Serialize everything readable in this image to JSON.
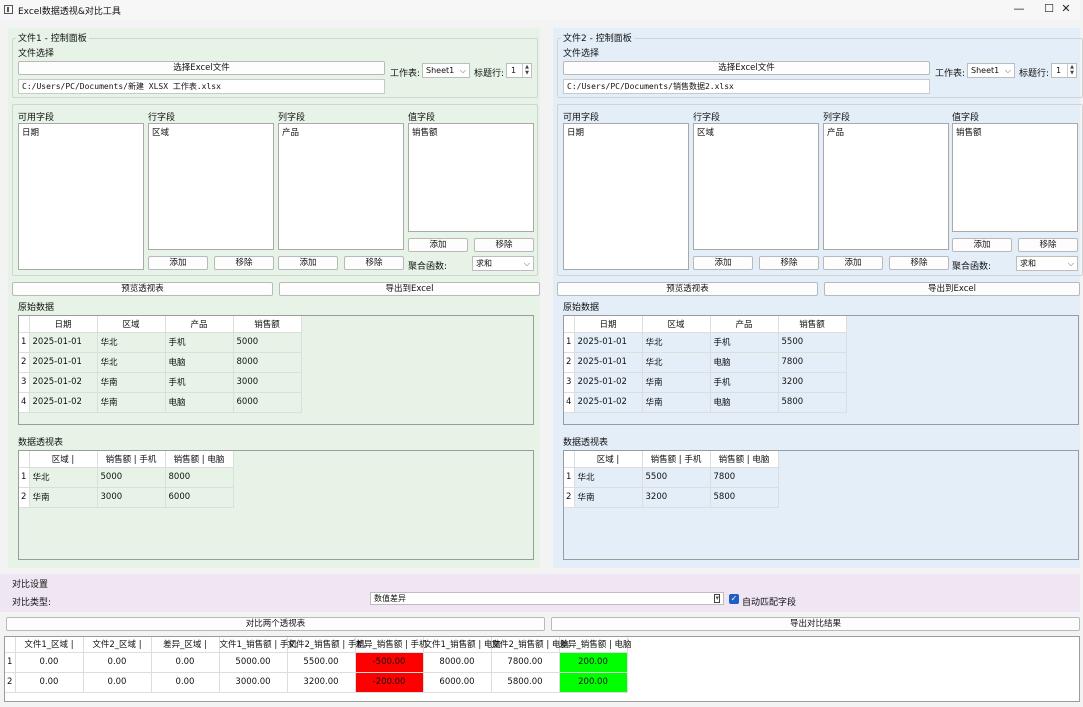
{
  "window": {
    "title": "Excel数据透视&对比工具",
    "minimize": "—",
    "maximize": "☐",
    "close": "✕"
  },
  "colors": {
    "panel1": "#e8f3e8",
    "panel2": "#e4eef9",
    "compare_bg": "#f0e6f3",
    "negative": "#ff0000",
    "positive": "#00ff00"
  },
  "file1": {
    "panel_title": "文件1 - 控制面板",
    "file_select_label": "文件选择",
    "select_button": "选择Excel文件",
    "path": "C:/Users/PC/Documents/新建 XLSX 工作表.xlsx",
    "sheet_label": "工作表:",
    "sheet_value": "Sheet1",
    "header_row_label": "标题行:",
    "header_row_value": "1",
    "available_label": "可用字段",
    "available_items": [
      "日期"
    ],
    "row_label": "行字段",
    "row_items": [
      "区域"
    ],
    "col_label": "列字段",
    "col_items": [
      "产品"
    ],
    "value_label": "值字段",
    "value_items": [
      "销售额"
    ],
    "add": "添加",
    "remove": "移除",
    "agg_label": "聚合函数:",
    "agg_value": "求和",
    "preview_button": "预览透视表",
    "export_button": "导出到Excel",
    "raw_title": "原始数据",
    "raw_headers": [
      "日期",
      "区域",
      "产品",
      "销售额"
    ],
    "raw_rows": [
      [
        "1",
        "2025-01-01",
        "华北",
        "手机",
        "5000"
      ],
      [
        "2",
        "2025-01-01",
        "华北",
        "电脑",
        "8000"
      ],
      [
        "3",
        "2025-01-02",
        "华南",
        "手机",
        "3000"
      ],
      [
        "4",
        "2025-01-02",
        "华南",
        "电脑",
        "6000"
      ]
    ],
    "pivot_title": "数据透视表",
    "pivot_headers": [
      "区域 |",
      "销售额 | 手机",
      "销售额 | 电脑"
    ],
    "pivot_rows": [
      [
        "1",
        "华北",
        "5000",
        "8000"
      ],
      [
        "2",
        "华南",
        "3000",
        "6000"
      ]
    ]
  },
  "file2": {
    "panel_title": "文件2 - 控制面板",
    "file_select_label": "文件选择",
    "select_button": "选择Excel文件",
    "path": "C:/Users/PC/Documents/销售数据2.xlsx",
    "sheet_label": "工作表:",
    "sheet_value": "Sheet1",
    "header_row_label": "标题行:",
    "header_row_value": "1",
    "available_label": "可用字段",
    "available_items": [
      "日期"
    ],
    "row_label": "行字段",
    "row_items": [
      "区域"
    ],
    "col_label": "列字段",
    "col_items": [
      "产品"
    ],
    "value_label": "值字段",
    "value_items": [
      "销售额"
    ],
    "add": "添加",
    "remove": "移除",
    "agg_label": "聚合函数:",
    "agg_value": "求和",
    "preview_button": "预览透视表",
    "export_button": "导出到Excel",
    "raw_title": "原始数据",
    "raw_headers": [
      "日期",
      "区域",
      "产品",
      "销售额"
    ],
    "raw_rows": [
      [
        "1",
        "2025-01-01",
        "华北",
        "手机",
        "5500"
      ],
      [
        "2",
        "2025-01-01",
        "华北",
        "电脑",
        "7800"
      ],
      [
        "3",
        "2025-01-02",
        "华南",
        "手机",
        "3200"
      ],
      [
        "4",
        "2025-01-02",
        "华南",
        "电脑",
        "5800"
      ]
    ],
    "pivot_title": "数据透视表",
    "pivot_headers": [
      "区域 |",
      "销售额 | 手机",
      "销售额 | 电脑"
    ],
    "pivot_rows": [
      [
        "1",
        "华北",
        "5500",
        "7800"
      ],
      [
        "2",
        "华南",
        "3200",
        "5800"
      ]
    ]
  },
  "compare": {
    "title": "对比设置",
    "type_label": "对比类型:",
    "type_value": "数值差异",
    "auto_match_label": "自动匹配字段",
    "auto_match_checked": true,
    "compare_button": "对比两个透视表",
    "export_button": "导出对比结果",
    "headers": [
      "文件1_区域 |",
      "文件2_区域 |",
      "差异_区域 |",
      "文件1_销售额 | 手机",
      "文件2_销售额 | 手机",
      "差异_销售额 | 手机",
      "文件1_销售额 | 电脑",
      "文件2_销售额 | 电脑",
      "差异_销售额 | 电脑"
    ],
    "rows": [
      {
        "num": "1",
        "cells": [
          "0.00",
          "0.00",
          "0.00",
          "5000.00",
          "5500.00",
          "-500.00",
          "8000.00",
          "7800.00",
          "200.00"
        ]
      },
      {
        "num": "2",
        "cells": [
          "0.00",
          "0.00",
          "0.00",
          "3000.00",
          "3200.00",
          "-200.00",
          "6000.00",
          "5800.00",
          "200.00"
        ]
      }
    ],
    "cell_colors": [
      [
        null,
        null,
        null,
        null,
        null,
        "#ff0000",
        null,
        null,
        "#00ff00"
      ],
      [
        null,
        null,
        null,
        null,
        null,
        "#ff0000",
        null,
        null,
        "#00ff00"
      ]
    ]
  }
}
